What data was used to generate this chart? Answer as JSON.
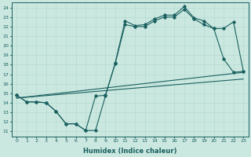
{
  "xlabel": "Humidex (Indice chaleur)",
  "xlim": [
    -0.5,
    23.5
  ],
  "ylim": [
    10.5,
    24.5
  ],
  "xticks": [
    0,
    1,
    2,
    3,
    4,
    5,
    6,
    7,
    8,
    9,
    10,
    11,
    12,
    13,
    14,
    15,
    16,
    17,
    18,
    19,
    20,
    21,
    22,
    23
  ],
  "yticks": [
    11,
    12,
    13,
    14,
    15,
    16,
    17,
    18,
    19,
    20,
    21,
    22,
    23,
    24
  ],
  "bg_color": "#cbe8e0",
  "line_color": "#1a6060",
  "grid_color": "#b8ddd5",
  "line1_x": [
    0,
    1,
    2,
    3,
    4,
    5,
    6,
    7,
    8,
    9,
    10,
    11,
    12,
    13,
    14,
    15,
    16,
    17,
    18,
    19,
    20,
    21,
    22,
    23
  ],
  "line1_y": [
    14.8,
    14.1,
    14.1,
    14.0,
    13.1,
    11.8,
    11.8,
    11.1,
    11.1,
    14.7,
    18.2,
    22.6,
    22.1,
    22.2,
    22.8,
    23.2,
    23.2,
    24.1,
    22.9,
    22.6,
    21.8,
    18.6,
    17.2,
    17.3
  ],
  "line2_x": [
    0,
    1,
    2,
    3,
    4,
    5,
    6,
    7,
    8,
    9,
    10,
    11,
    12,
    13,
    14,
    15,
    16,
    17,
    18,
    19,
    20,
    21,
    22,
    23
  ],
  "line2_y": [
    14.8,
    14.1,
    14.1,
    14.0,
    13.1,
    11.8,
    11.8,
    11.1,
    14.7,
    14.8,
    18.1,
    22.2,
    22.0,
    22.0,
    22.6,
    23.0,
    23.0,
    23.8,
    22.8,
    22.2,
    21.8,
    21.8,
    22.5,
    17.3
  ],
  "line3_x": [
    0,
    23
  ],
  "line3_y": [
    14.5,
    17.2
  ],
  "line4_x": [
    0,
    23
  ],
  "line4_y": [
    14.5,
    16.5
  ]
}
